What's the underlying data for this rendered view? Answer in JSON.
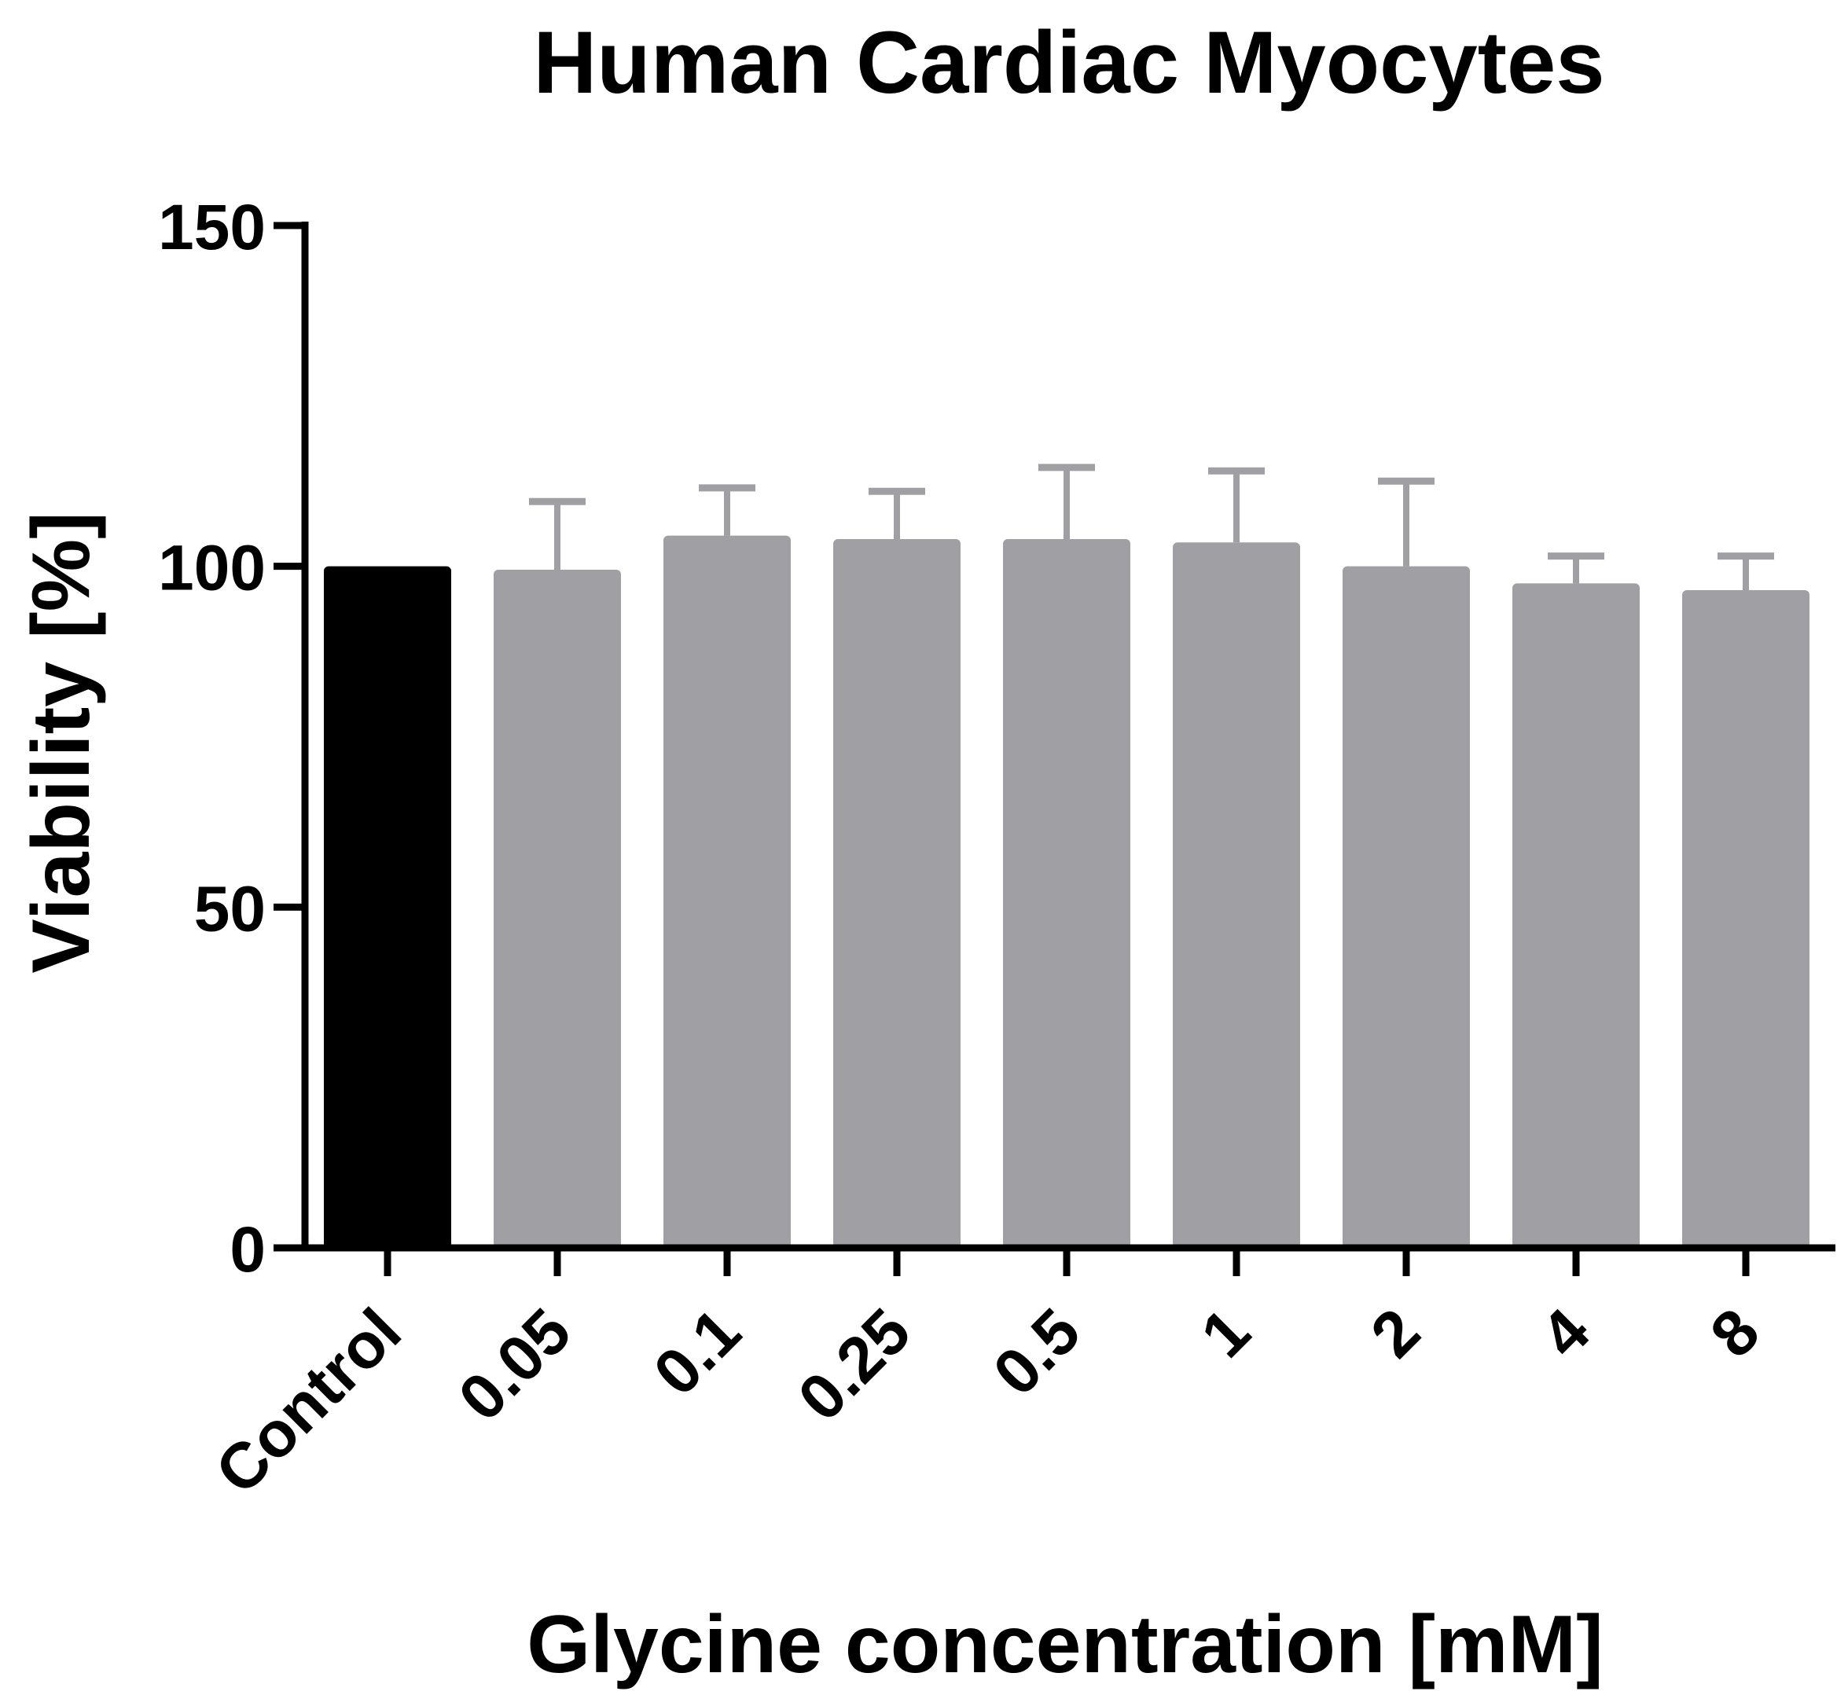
{
  "chart_data": {
    "type": "bar",
    "title": "Human Cardiac Myocytes",
    "xlabel": "Glycine concentration [mM]",
    "ylabel": "Viability [%]",
    "categories": [
      "Control",
      "0.05",
      "0.1",
      "0.25",
      "0.5",
      "1",
      "2",
      "4",
      "8"
    ],
    "series": [
      {
        "values": [
          100,
          99.5,
          104.5,
          104,
          104,
          103.5,
          100,
          97.5,
          96.5
        ],
        "error": [
          0,
          10,
          7,
          7,
          10.5,
          10.5,
          12.5,
          4,
          5
        ]
      }
    ],
    "ylim": [
      0,
      150
    ],
    "yticks": [
      0,
      50,
      100,
      150
    ],
    "grid": false,
    "legend": "none",
    "colors": {
      "control_bar": "#000000",
      "bars": "#a0a0a4",
      "error_bars": "#a0a0a4",
      "axis": "#000000"
    }
  }
}
